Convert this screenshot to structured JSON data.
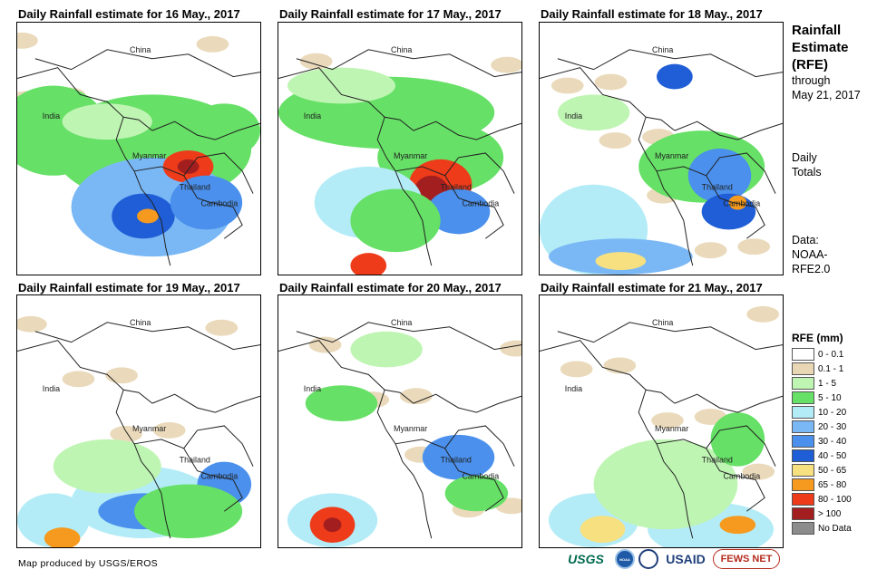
{
  "panels": [
    {
      "title": "Daily Rainfall estimate for 16 May., 2017"
    },
    {
      "title": "Daily Rainfall estimate for 17 May., 2017"
    },
    {
      "title": "Daily Rainfall estimate for 18 May., 2017"
    },
    {
      "title": "Daily Rainfall estimate for 19 May., 2017"
    },
    {
      "title": "Daily Rainfall estimate for 20 May., 2017"
    },
    {
      "title": "Daily Rainfall estimate for 21 May., 2017"
    }
  ],
  "map_labels": {
    "china": "China",
    "india": "India",
    "myanmar": "Myanmar",
    "thailand": "Thailand",
    "cambodia": "Cambodia"
  },
  "sidebar": {
    "title_lines": [
      "Rainfall",
      "Estimate",
      "(RFE)"
    ],
    "through_lines": [
      "through",
      "May 21, 2017"
    ],
    "totals_lines": [
      "Daily",
      "Totals"
    ],
    "data_lines": [
      "Data:",
      "NOAA-",
      "RFE2.0"
    ]
  },
  "legend": {
    "title": "RFE (mm)",
    "items": [
      {
        "label": "0 - 0.1",
        "color": "#ffffff"
      },
      {
        "label": "0.1 - 1",
        "color": "#e8d6b4"
      },
      {
        "label": "1 - 5",
        "color": "#bff5b3"
      },
      {
        "label": "5 - 10",
        "color": "#66e066"
      },
      {
        "label": "10 - 20",
        "color": "#b3ecf7"
      },
      {
        "label": "20 - 30",
        "color": "#7ab8f5"
      },
      {
        "label": "30 - 40",
        "color": "#4a90ec"
      },
      {
        "label": "40 - 50",
        "color": "#1f5ed6"
      },
      {
        "label": "50 - 65",
        "color": "#f7e080"
      },
      {
        "label": "65 - 80",
        "color": "#f59a1e"
      },
      {
        "label": "80 - 100",
        "color": "#ee3b1a"
      },
      {
        "label": "> 100",
        "color": "#a31f1f"
      },
      {
        "label": "No Data",
        "color": "#8c8c8c"
      }
    ]
  },
  "footer": {
    "credit": "Map produced by USGS/EROS"
  },
  "logos": {
    "usgs": "USGS",
    "noaa": "NOAA",
    "usaid": "USAID",
    "fewsnet": "FEWS NET"
  }
}
